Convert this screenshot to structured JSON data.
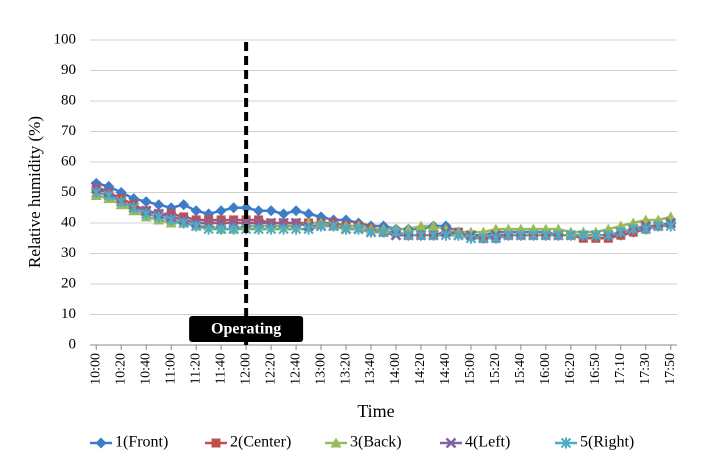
{
  "chart_data": {
    "type": "line",
    "y_label": "Relative humidity (%)",
    "x_label": "Time",
    "categories": [
      "10:00",
      null,
      "10:20",
      null,
      "10:40",
      null,
      "11:00",
      null,
      "11:20",
      null,
      "11:40",
      null,
      "12:00",
      null,
      "12:20",
      null,
      "12:40",
      null,
      "13:00",
      null,
      "13:20",
      null,
      "13:40",
      null,
      "14:00",
      null,
      "14:20",
      null,
      "14:40",
      null,
      "15:00",
      null,
      "15:20",
      null,
      "15:40",
      null,
      "16:00",
      null,
      "16:20",
      null,
      "16:50",
      null,
      "17:10",
      null,
      "17:30",
      null,
      "17:50"
    ],
    "series": [
      {
        "name": "1(Front)",
        "color": "#3d7cc9",
        "marker": "diamond",
        "values": [
          53,
          52,
          50,
          48,
          47,
          46,
          45,
          46,
          44,
          43,
          44,
          45,
          45,
          44,
          44,
          43,
          44,
          43,
          42,
          41,
          41,
          40,
          39,
          39,
          38,
          38,
          38,
          39,
          39,
          37,
          36,
          36,
          37,
          37,
          37,
          37,
          37,
          36,
          36,
          36,
          36,
          36,
          36,
          37,
          38,
          39,
          40
        ]
      },
      {
        "name": "2(Center)",
        "color": "#c0504d",
        "marker": "square",
        "values": [
          51,
          50,
          48,
          46,
          44,
          43,
          43,
          42,
          41,
          41,
          41,
          41,
          41,
          41,
          40,
          40,
          40,
          40,
          40,
          40,
          39,
          39,
          38,
          37,
          37,
          36,
          36,
          36,
          37,
          37,
          36,
          35,
          35,
          36,
          36,
          36,
          36,
          36,
          36,
          35,
          35,
          35,
          36,
          37,
          38,
          39,
          40
        ]
      },
      {
        "name": "3(Back)",
        "color": "#9bbb59",
        "marker": "triangle",
        "values": [
          49,
          48,
          46,
          44,
          42,
          41,
          40,
          40,
          39,
          39,
          38,
          38,
          39,
          39,
          39,
          39,
          39,
          40,
          40,
          39,
          39,
          39,
          38,
          38,
          38,
          38,
          39,
          39,
          38,
          37,
          37,
          37,
          38,
          38,
          38,
          38,
          38,
          38,
          37,
          37,
          37,
          38,
          39,
          40,
          41,
          41,
          42
        ]
      },
      {
        "name": "4(Left)",
        "color": "#8064a2",
        "marker": "x",
        "values": [
          52,
          50,
          47,
          45,
          44,
          43,
          42,
          41,
          40,
          40,
          40,
          40,
          40,
          40,
          40,
          40,
          40,
          39,
          39,
          39,
          38,
          38,
          37,
          37,
          36,
          36,
          36,
          36,
          37,
          36,
          36,
          35,
          36,
          36,
          36,
          36,
          36,
          36,
          36,
          36,
          36,
          36,
          37,
          38,
          39,
          39,
          40
        ]
      },
      {
        "name": "5(Right)",
        "color": "#4bacc6",
        "marker": "star",
        "values": [
          50,
          49,
          47,
          45,
          43,
          42,
          41,
          40,
          39,
          38,
          38,
          38,
          38,
          38,
          38,
          38,
          38,
          38,
          39,
          39,
          38,
          38,
          37,
          37,
          37,
          36,
          36,
          36,
          36,
          36,
          35,
          35,
          35,
          36,
          36,
          36,
          36,
          36,
          36,
          36,
          36,
          36,
          37,
          38,
          38,
          39,
          39
        ]
      }
    ],
    "ylim": [
      0,
      100
    ],
    "yticks": [
      0,
      10,
      20,
      30,
      40,
      50,
      60,
      70,
      80,
      90,
      100
    ],
    "grid": true,
    "annotation": {
      "text": "Operating",
      "x": "12:00"
    },
    "legend": "bottom"
  }
}
